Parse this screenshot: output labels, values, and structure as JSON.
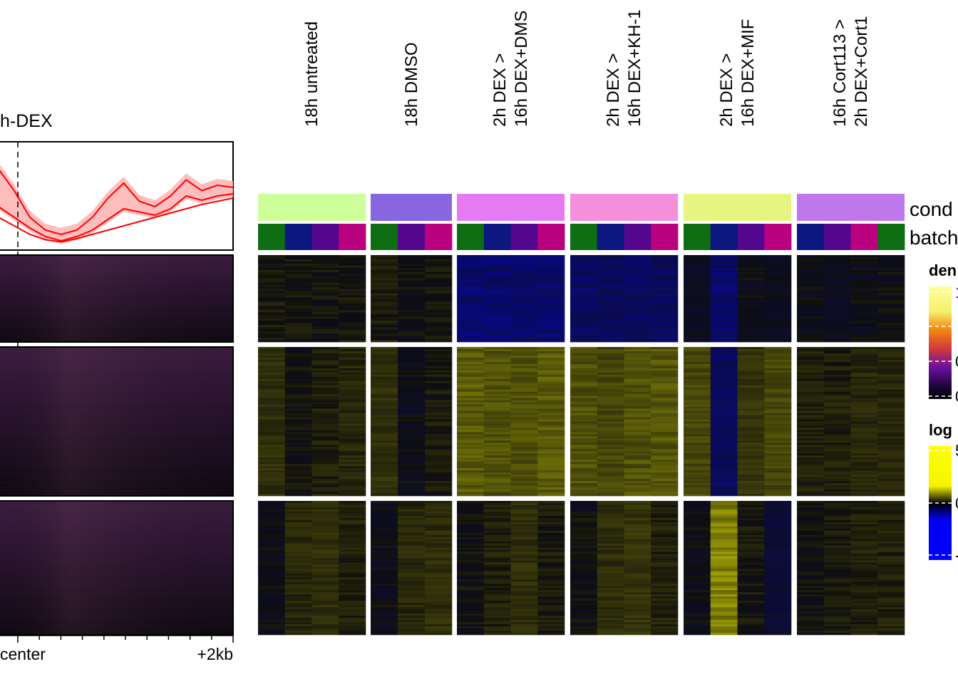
{
  "profile": {
    "title": "h-DEX",
    "x_tick_labels": [
      "center",
      "+2kb"
    ],
    "line_color": "#ff0000",
    "band_color": "#ffb3b3"
  },
  "header_labels": [
    [
      "18h untreated"
    ],
    [
      "18h DMSO"
    ],
    [
      "2h DEX >",
      "16h DEX+DMS"
    ],
    [
      "2h DEX >",
      "16h DEX+KH-1"
    ],
    [
      "2h DEX >",
      "16h DEX+MIF"
    ],
    [
      "16h Cort113 >",
      "2h DEX+Cort1"
    ]
  ],
  "annotation_labels": {
    "condition": "cond",
    "batch": "batch"
  },
  "legends": {
    "density": {
      "title": "den",
      "tick_labels": [
        "1",
        "0",
        "0"
      ]
    },
    "log2fc": {
      "title": "log",
      "tick_labels": [
        "5",
        "0",
        "-"
      ]
    }
  },
  "colors": {
    "condition": [
      "#ccff99",
      "#8866e0",
      "#e57af2",
      "#f48fdc",
      "#e5f57f",
      "#bf78ec"
    ],
    "batch": {
      "green": "#0f6e13",
      "navy": "#0d1780",
      "purple": "#54068f",
      "magenta": "#b9007f"
    },
    "batch_order": [
      [
        "green",
        "navy",
        "purple",
        "magenta"
      ],
      [
        "green",
        "purple",
        "magenta"
      ],
      [
        "green",
        "navy",
        "purple",
        "magenta"
      ],
      [
        "green",
        "navy",
        "purple",
        "magenta"
      ],
      [
        "green",
        "navy",
        "purple",
        "magenta"
      ],
      [
        "navy",
        "purple",
        "magenta",
        "green"
      ]
    ]
  },
  "chart_data": {
    "type": "heatmap",
    "columns": [
      "18h untreated",
      "18h DMSO",
      "2h DEX > 16h DEX+DMS",
      "2h DEX > 16h DEX+KH-1",
      "2h DEX > 16h DEX+MIF",
      "16h Cort113 > 2h DEX+Cort1"
    ],
    "row_clusters": 3,
    "log2fc_range": [
      -5,
      5
    ],
    "density_range": [
      0,
      1
    ],
    "cluster_mean_log2fc": [
      [
        [
          0.1,
          0.05,
          0.05,
          0.08
        ],
        [
          0.1,
          0.0,
          0.05
        ],
        [
          -1.5,
          -1.5,
          -1.4,
          -1.5
        ],
        [
          -1.2,
          -1.2,
          -1.2,
          -1.2
        ],
        [
          -0.2,
          -1.5,
          -0.1,
          -0.2
        ],
        [
          -0.1,
          -0.2,
          -0.1,
          -0.05
        ]
      ],
      [
        [
          0.4,
          0.0,
          0.2,
          0.3
        ],
        [
          0.4,
          -0.1,
          0.1
        ],
        [
          1.2,
          1.0,
          1.0,
          1.2
        ],
        [
          1.0,
          0.8,
          1.0,
          1.1
        ],
        [
          0.8,
          -1.2,
          0.5,
          0.8
        ],
        [
          0.2,
          0.2,
          0.3,
          0.3
        ]
      ],
      [
        [
          -0.1,
          0.3,
          0.4,
          0.2
        ],
        [
          -0.1,
          0.3,
          0.4
        ],
        [
          0.0,
          0.2,
          0.4,
          0.1
        ],
        [
          0.0,
          0.4,
          0.5,
          0.2
        ],
        [
          -0.1,
          2.0,
          0.1,
          -0.5
        ],
        [
          0.0,
          0.1,
          0.2,
          0.2
        ]
      ]
    ],
    "profile_series": [
      {
        "x": [
          -1,
          -0.8,
          -0.6,
          -0.4,
          -0.2,
          0,
          0.2,
          0.4,
          0.6,
          0.8,
          1,
          1.2,
          1.4,
          1.6,
          1.8,
          2
        ],
        "y": [
          0.75,
          0.55,
          0.3,
          0.18,
          0.14,
          0.18,
          0.3,
          0.48,
          0.62,
          0.45,
          0.4,
          0.5,
          0.65,
          0.55,
          0.6,
          0.58
        ]
      },
      {
        "x": [
          -1,
          -0.8,
          -0.6,
          -0.4,
          -0.2,
          0,
          0.2,
          0.4,
          0.6,
          0.8,
          1,
          1.2,
          1.4,
          1.6,
          1.8,
          2
        ],
        "y": [
          0.4,
          0.3,
          0.2,
          0.12,
          0.08,
          0.12,
          0.18,
          0.28,
          0.38,
          0.35,
          0.32,
          0.38,
          0.5,
          0.46,
          0.5,
          0.52
        ]
      },
      {
        "x": [
          -1,
          -0.8,
          -0.6,
          -0.4,
          -0.2,
          0,
          0.2,
          0.4,
          0.6,
          0.8,
          1,
          1.2,
          1.4,
          1.6,
          1.8,
          2
        ],
        "y": [
          0.3,
          0.22,
          0.14,
          0.09,
          0.07,
          0.1,
          0.14,
          0.18,
          0.22,
          0.26,
          0.3,
          0.34,
          0.38,
          0.42,
          0.45,
          0.48
        ]
      }
    ]
  }
}
